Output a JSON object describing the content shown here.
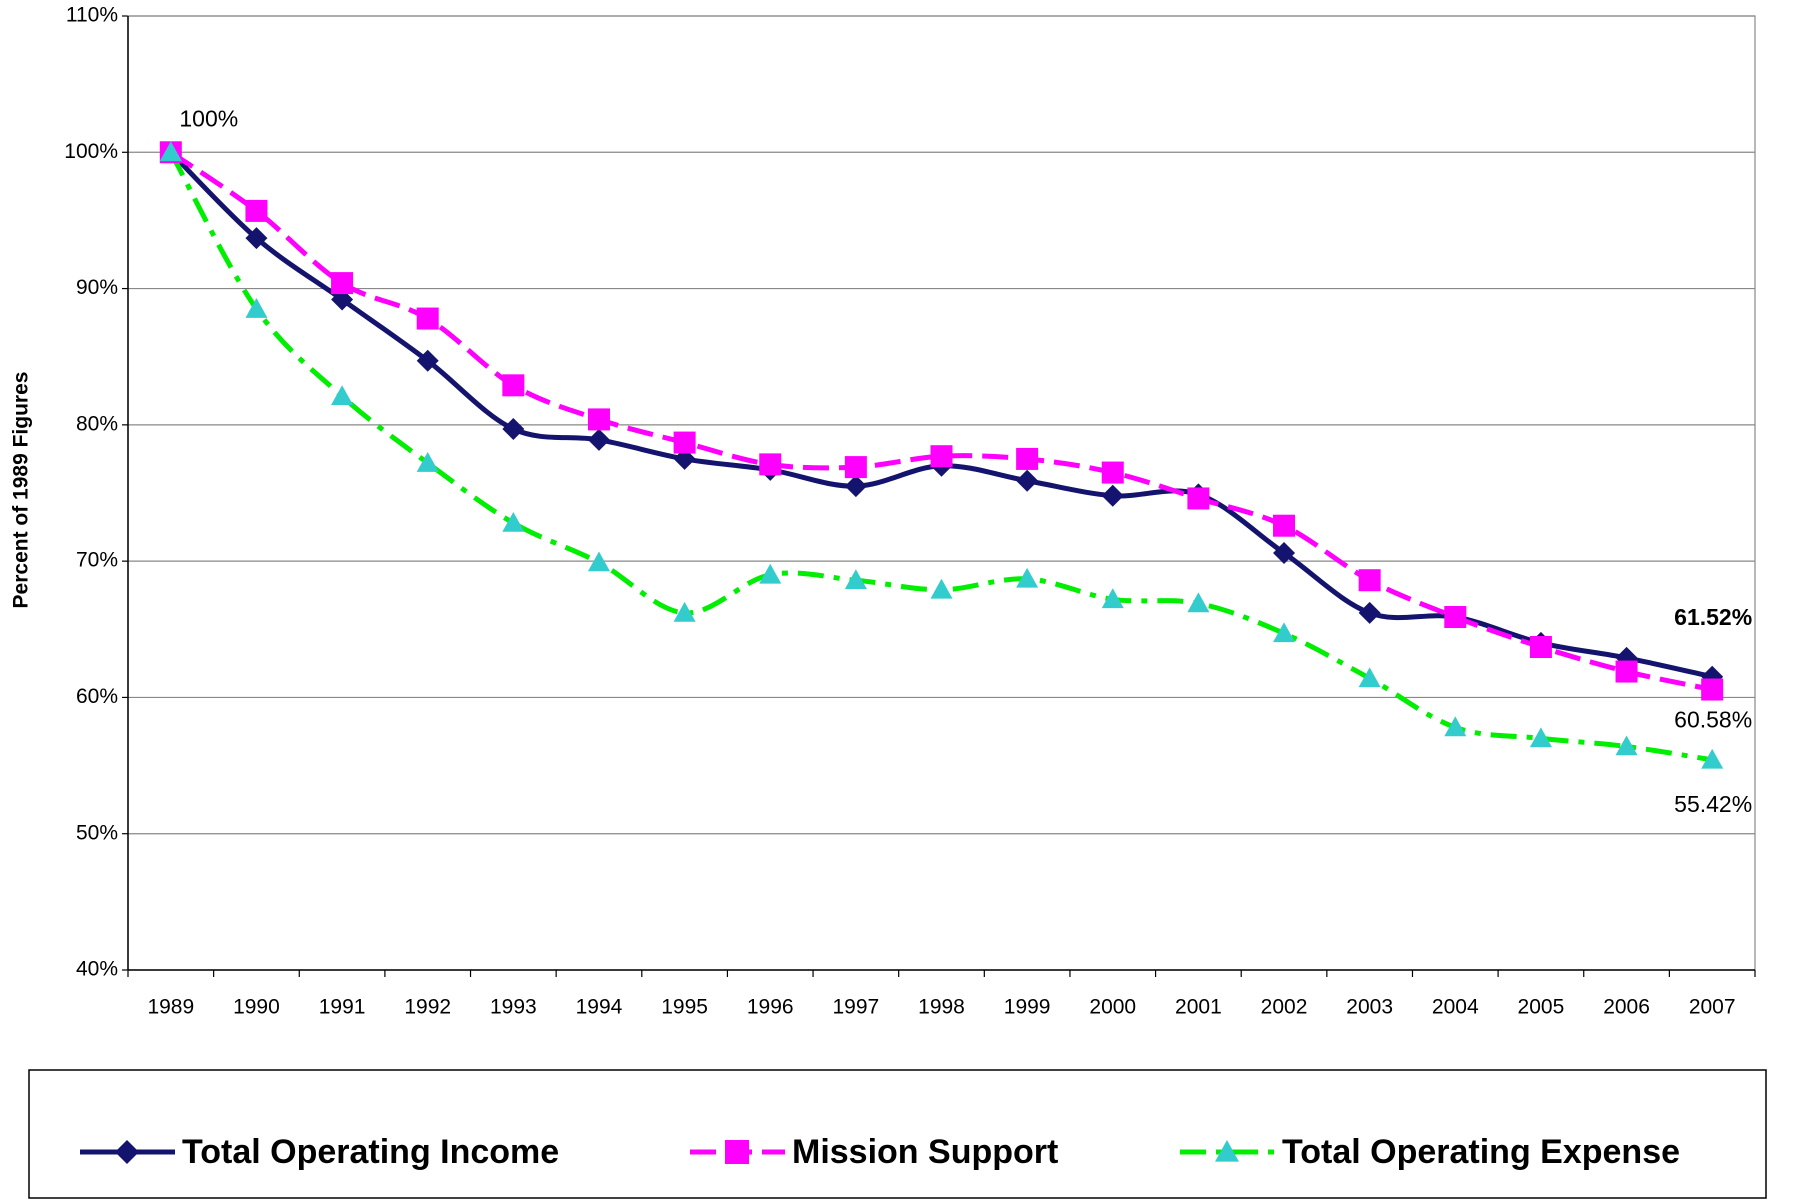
{
  "chart_data": {
    "type": "line",
    "y_label": "Percent of 1989 Figures",
    "categories": [
      "1989",
      "1990",
      "1991",
      "1992",
      "1993",
      "1994",
      "1995",
      "1996",
      "1997",
      "1998",
      "1999",
      "2000",
      "2001",
      "2002",
      "2003",
      "2004",
      "2005",
      "2006",
      "2007"
    ],
    "ylim": [
      40,
      110
    ],
    "yticks": [
      {
        "value": 40,
        "label": "40%"
      },
      {
        "value": 50,
        "label": "50%"
      },
      {
        "value": 60,
        "label": "60%"
      },
      {
        "value": 70,
        "label": "70%"
      },
      {
        "value": 80,
        "label": "80%"
      },
      {
        "value": 90,
        "label": "90%"
      },
      {
        "value": 100,
        "label": "100%"
      },
      {
        "value": 110,
        "label": "110%"
      }
    ],
    "grid": true,
    "smooth": true,
    "legend": "bottom",
    "series": [
      {
        "name": "Total Operating Income",
        "color": "#14146e",
        "marker": "diamond",
        "marker_color": "#14146e",
        "dash": "solid",
        "label_color": "#000000",
        "label_bold": true,
        "values": [
          100,
          93.7,
          89.2,
          84.7,
          79.7,
          78.9,
          77.5,
          76.7,
          75.5,
          77.0,
          75.9,
          74.8,
          74.9,
          70.6,
          66.2,
          65.9,
          64.0,
          62.9,
          61.52
        ],
        "value_labels": [
          null,
          null,
          null,
          null,
          null,
          null,
          null,
          null,
          null,
          null,
          null,
          null,
          null,
          null,
          null,
          null,
          null,
          null,
          "61.52%"
        ]
      },
      {
        "name": "Mission Support",
        "color": "#ff00ff",
        "marker": "square",
        "marker_color": "#ff00ff",
        "dash": "dashed",
        "label_color": "#ff00ff",
        "label_bold": false,
        "values": [
          100,
          95.7,
          90.4,
          87.8,
          82.9,
          80.4,
          78.7,
          77.1,
          76.9,
          77.7,
          77.5,
          76.5,
          74.6,
          72.6,
          68.6,
          65.9,
          63.7,
          61.9,
          60.58
        ],
        "value_labels": [
          "100%",
          null,
          null,
          null,
          null,
          null,
          null,
          null,
          null,
          null,
          null,
          null,
          null,
          null,
          null,
          null,
          null,
          null,
          "60.58%"
        ]
      },
      {
        "name": "Total Operating Expense",
        "color": "#00ee00",
        "marker": "triangle",
        "marker_color": "#33cccc",
        "dash": "dashdot",
        "label_color": "#00cc00",
        "label_bold": false,
        "values": [
          100,
          88.5,
          82.1,
          77.2,
          72.8,
          69.9,
          66.2,
          69.0,
          68.6,
          67.9,
          68.7,
          67.2,
          66.9,
          64.7,
          61.4,
          57.8,
          57.0,
          56.4,
          55.42
        ],
        "value_labels": [
          null,
          null,
          null,
          null,
          null,
          null,
          null,
          null,
          null,
          null,
          null,
          null,
          null,
          null,
          null,
          null,
          null,
          null,
          "55.42%"
        ]
      }
    ]
  }
}
